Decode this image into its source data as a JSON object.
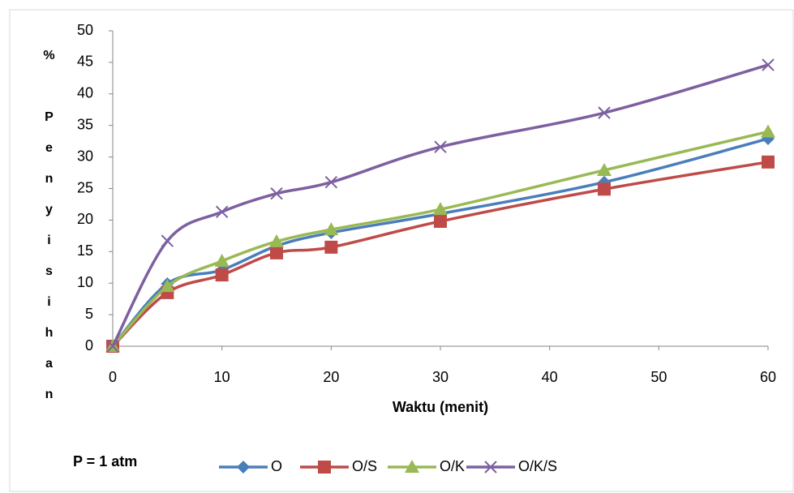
{
  "chart_data": {
    "type": "line",
    "y_label": "% Penyisihan",
    "x_label": "Waktu (menit)",
    "annotation": "P = 1 atm",
    "x": [
      0,
      5,
      10,
      15,
      20,
      30,
      45,
      60
    ],
    "series": [
      {
        "name": "O",
        "color": "#4a7ebb",
        "marker": "diamond",
        "values": [
          0,
          9.9,
          12.1,
          15.9,
          18,
          21,
          26,
          32.9
        ]
      },
      {
        "name": "O/S",
        "color": "#be4b48",
        "marker": "square",
        "values": [
          0,
          8.5,
          11.3,
          14.8,
          15.7,
          19.8,
          24.9,
          29.2
        ]
      },
      {
        "name": "O/K",
        "color": "#98b954",
        "marker": "triangle",
        "values": [
          0,
          9.5,
          13.5,
          16.6,
          18.5,
          21.7,
          27.9,
          34
        ]
      },
      {
        "name": "O/K/S",
        "color": "#7d60a0",
        "marker": "x",
        "values": [
          0,
          16.7,
          21.3,
          24.2,
          26,
          31.6,
          37,
          44.6
        ]
      }
    ],
    "xlim": [
      0,
      60
    ],
    "xticks": [
      0,
      10,
      20,
      30,
      40,
      50,
      60
    ],
    "ylim": [
      0,
      50
    ],
    "yticks": [
      0,
      5,
      10,
      15,
      20,
      25,
      30,
      35,
      40,
      45,
      50
    ],
    "smooth": true,
    "grid": false,
    "legend": "bottom"
  }
}
